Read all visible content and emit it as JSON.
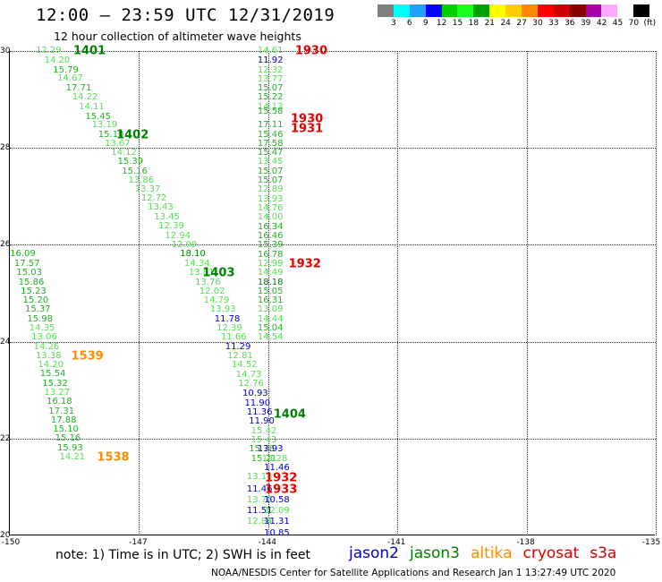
{
  "title": "12:00 — 23:59 UTC 12/31/2019",
  "subtitle": "12 hour collection of altimeter wave heights",
  "colorbar": {
    "colors": [
      "#808080",
      "#00ffff",
      "#1fa0ff",
      "#0000ff",
      "#00d000",
      "#1aff1a",
      "#00a000",
      "#ffff00",
      "#ffcc00",
      "#ff8800",
      "#ff0000",
      "#cc0000",
      "#880000",
      "#aa00aa",
      "#ffaaff",
      "#ffffff",
      "#000000"
    ],
    "labels": [
      "3",
      "6",
      "9",
      "12",
      "15",
      "18",
      "21",
      "24",
      "27",
      "30",
      "33",
      "36",
      "39",
      "42",
      "45",
      "70",
      "(ft)"
    ]
  },
  "map": {
    "x_ticks": [
      "-150",
      "-147",
      "-144",
      "-141",
      "-138",
      "-135"
    ],
    "y_ticks": [
      "30",
      "28",
      "26",
      "24",
      "22",
      "20"
    ]
  },
  "track_colors": {
    "dark_green": "#008000",
    "green": "#22b022",
    "light_green": "#55dd55",
    "blue": "#0000cc",
    "orange": "#ff8c00",
    "red": "#e00000",
    "black": "#000000"
  },
  "values": [
    {
      "t": "12.29",
      "c": "light_green",
      "x": -149.1,
      "y": 30.0
    },
    {
      "t": "14.20",
      "c": "light_green",
      "x": -148.9,
      "y": 29.8
    },
    {
      "t": "15.79",
      "c": "green",
      "x": -148.7,
      "y": 29.6
    },
    {
      "t": "14.67",
      "c": "light_green",
      "x": -148.6,
      "y": 29.42
    },
    {
      "t": "17.71",
      "c": "green",
      "x": -148.4,
      "y": 29.22
    },
    {
      "t": "14.22",
      "c": "light_green",
      "x": -148.25,
      "y": 29.03
    },
    {
      "t": "14.11",
      "c": "light_green",
      "x": -148.1,
      "y": 28.84
    },
    {
      "t": "15.45",
      "c": "green",
      "x": -147.95,
      "y": 28.64
    },
    {
      "t": "13.19",
      "c": "light_green",
      "x": -147.8,
      "y": 28.46
    },
    {
      "t": "15.10",
      "c": "green",
      "x": -147.65,
      "y": 28.27
    },
    {
      "t": "13.67",
      "c": "light_green",
      "x": -147.5,
      "y": 28.08
    },
    {
      "t": "14.12",
      "c": "light_green",
      "x": -147.35,
      "y": 27.89
    },
    {
      "t": "15.39",
      "c": "green",
      "x": -147.2,
      "y": 27.7
    },
    {
      "t": "15.16",
      "c": "green",
      "x": -147.1,
      "y": 27.51
    },
    {
      "t": "13.86",
      "c": "light_green",
      "x": -146.95,
      "y": 27.32
    },
    {
      "t": "13.37",
      "c": "light_green",
      "x": -146.8,
      "y": 27.13
    },
    {
      "t": "12.72",
      "c": "light_green",
      "x": -146.65,
      "y": 26.95
    },
    {
      "t": "13.43",
      "c": "light_green",
      "x": -146.5,
      "y": 26.76
    },
    {
      "t": "13.45",
      "c": "light_green",
      "x": -146.35,
      "y": 26.56
    },
    {
      "t": "12.39",
      "c": "light_green",
      "x": -146.25,
      "y": 26.37
    },
    {
      "t": "12.94",
      "c": "light_green",
      "x": -146.1,
      "y": 26.18
    },
    {
      "t": "12.99",
      "c": "light_green",
      "x": -145.95,
      "y": 25.99
    },
    {
      "t": "18.10",
      "c": "dark_green",
      "x": -145.75,
      "y": 25.8
    },
    {
      "t": "14.34",
      "c": "light_green",
      "x": -145.65,
      "y": 25.6
    },
    {
      "t": "13.81",
      "c": "light_green",
      "x": -145.55,
      "y": 25.41
    },
    {
      "t": "13.76",
      "c": "light_green",
      "x": -145.4,
      "y": 25.22
    },
    {
      "t": "12.02",
      "c": "light_green",
      "x": -145.3,
      "y": 25.03
    },
    {
      "t": "14.79",
      "c": "light_green",
      "x": -145.2,
      "y": 24.84
    },
    {
      "t": "13.93",
      "c": "light_green",
      "x": -145.05,
      "y": 24.65
    },
    {
      "t": "11.78",
      "c": "blue",
      "x": -144.95,
      "y": 24.46
    },
    {
      "t": "12.39",
      "c": "light_green",
      "x": -144.9,
      "y": 24.27
    },
    {
      "t": "11.66",
      "c": "light_green",
      "x": -144.8,
      "y": 24.08
    },
    {
      "t": "11.29",
      "c": "blue",
      "x": -144.7,
      "y": 23.89
    },
    {
      "t": "12.81",
      "c": "light_green",
      "x": -144.65,
      "y": 23.7
    },
    {
      "t": "14.52",
      "c": "light_green",
      "x": -144.55,
      "y": 23.51
    },
    {
      "t": "14.73",
      "c": "light_green",
      "x": -144.45,
      "y": 23.31
    },
    {
      "t": "12.76",
      "c": "light_green",
      "x": -144.4,
      "y": 23.12
    },
    {
      "t": "10.93",
      "c": "blue",
      "x": -144.3,
      "y": 22.92
    },
    {
      "t": "11.90",
      "c": "blue",
      "x": -144.25,
      "y": 22.72
    },
    {
      "t": "11.36",
      "c": "blue",
      "x": -144.2,
      "y": 22.53
    },
    {
      "t": "11.90",
      "c": "blue",
      "x": -144.15,
      "y": 22.34
    },
    {
      "t": "15.42",
      "c": "light_green",
      "x": -144.1,
      "y": 22.15
    },
    {
      "t": "15.43",
      "c": "light_green",
      "x": -144.1,
      "y": 21.96
    },
    {
      "t": "15.78",
      "c": "green",
      "x": -144.15,
      "y": 21.77
    },
    {
      "t": "15.21",
      "c": "green",
      "x": -144.1,
      "y": 21.58
    },
    {
      "t": "13.18",
      "c": "light_green",
      "x": -144.2,
      "y": 21.2
    },
    {
      "t": "11.46",
      "c": "blue",
      "x": -144.2,
      "y": 20.95
    },
    {
      "t": "13.78",
      "c": "light_green",
      "x": -144.2,
      "y": 20.73
    },
    {
      "t": "11.51",
      "c": "blue",
      "x": -144.2,
      "y": 20.5
    },
    {
      "t": "12.84",
      "c": "light_green",
      "x": -144.2,
      "y": 20.27
    },
    {
      "t": "14.61",
      "c": "light_green",
      "x": -143.95,
      "y": 30.0
    },
    {
      "t": "11.92",
      "c": "blue",
      "x": -143.95,
      "y": 29.8
    },
    {
      "t": "12.32",
      "c": "light_green",
      "x": -143.95,
      "y": 29.6
    },
    {
      "t": "13.77",
      "c": "light_green",
      "x": -143.95,
      "y": 29.41
    },
    {
      "t": "15.07",
      "c": "green",
      "x": -143.95,
      "y": 29.22
    },
    {
      "t": "15.22",
      "c": "green",
      "x": -143.95,
      "y": 29.03
    },
    {
      "t": "14.13",
      "c": "light_green",
      "x": -143.95,
      "y": 28.84
    },
    {
      "t": "15.58",
      "c": "green",
      "x": -143.95,
      "y": 28.75
    },
    {
      "t": "17.11",
      "c": "green",
      "x": -143.95,
      "y": 28.46
    },
    {
      "t": "15.46",
      "c": "green",
      "x": -143.95,
      "y": 28.27
    },
    {
      "t": "17.58",
      "c": "green",
      "x": -143.95,
      "y": 28.08
    },
    {
      "t": "15.47",
      "c": "green",
      "x": -143.95,
      "y": 27.89
    },
    {
      "t": "13.45",
      "c": "light_green",
      "x": -143.95,
      "y": 27.7
    },
    {
      "t": "15.07",
      "c": "green",
      "x": -143.95,
      "y": 27.51
    },
    {
      "t": "15.07",
      "c": "green",
      "x": -143.95,
      "y": 27.32
    },
    {
      "t": "12.89",
      "c": "light_green",
      "x": -143.95,
      "y": 27.13
    },
    {
      "t": "13.93",
      "c": "light_green",
      "x": -143.95,
      "y": 26.94
    },
    {
      "t": "14.76",
      "c": "light_green",
      "x": -143.95,
      "y": 26.75
    },
    {
      "t": "14.00",
      "c": "light_green",
      "x": -143.95,
      "y": 26.56
    },
    {
      "t": "16.34",
      "c": "green",
      "x": -143.95,
      "y": 26.36
    },
    {
      "t": "16.46",
      "c": "green",
      "x": -143.95,
      "y": 26.17
    },
    {
      "t": "15.39",
      "c": "green",
      "x": -143.95,
      "y": 25.98
    },
    {
      "t": "16.78",
      "c": "green",
      "x": -143.95,
      "y": 25.79
    },
    {
      "t": "12.99",
      "c": "light_green",
      "x": -143.95,
      "y": 25.6
    },
    {
      "t": "14.49",
      "c": "light_green",
      "x": -143.95,
      "y": 25.41
    },
    {
      "t": "18.18",
      "c": "dark_green",
      "x": -143.95,
      "y": 25.22
    },
    {
      "t": "15.05",
      "c": "green",
      "x": -143.95,
      "y": 25.03
    },
    {
      "t": "16.31",
      "c": "green",
      "x": -143.95,
      "y": 24.84
    },
    {
      "t": "13.09",
      "c": "light_green",
      "x": -143.95,
      "y": 24.65
    },
    {
      "t": "14.44",
      "c": "light_green",
      "x": -143.95,
      "y": 24.46
    },
    {
      "t": "15.04",
      "c": "green",
      "x": -143.95,
      "y": 24.27
    },
    {
      "t": "14.54",
      "c": "light_green",
      "x": -143.95,
      "y": 24.08
    },
    {
      "t": "13.93",
      "c": "blue",
      "x": -143.95,
      "y": 21.77
    },
    {
      "t": "14.28",
      "c": "light_green",
      "x": -143.85,
      "y": 21.58
    },
    {
      "t": "11.46",
      "c": "blue",
      "x": -143.8,
      "y": 21.39
    },
    {
      "t": "10.58",
      "c": "blue",
      "x": -143.8,
      "y": 20.73
    },
    {
      "t": "12.09",
      "c": "light_green",
      "x": -143.8,
      "y": 20.5
    },
    {
      "t": "11.31",
      "c": "blue",
      "x": -143.8,
      "y": 20.27
    },
    {
      "t": "10.85",
      "c": "blue",
      "x": -143.8,
      "y": 20.04
    },
    {
      "t": "16.09",
      "c": "green",
      "x": -149.7,
      "y": 25.8
    },
    {
      "t": "17.57",
      "c": "green",
      "x": -149.6,
      "y": 25.6
    },
    {
      "t": "15.03",
      "c": "green",
      "x": -149.55,
      "y": 25.41
    },
    {
      "t": "15.86",
      "c": "green",
      "x": -149.5,
      "y": 25.22
    },
    {
      "t": "15.23",
      "c": "green",
      "x": -149.45,
      "y": 25.03
    },
    {
      "t": "15.20",
      "c": "green",
      "x": -149.4,
      "y": 24.84
    },
    {
      "t": "15.37",
      "c": "green",
      "x": -149.35,
      "y": 24.65
    },
    {
      "t": "15.98",
      "c": "green",
      "x": -149.3,
      "y": 24.46
    },
    {
      "t": "14.35",
      "c": "light_green",
      "x": -149.25,
      "y": 24.27
    },
    {
      "t": "13.06",
      "c": "light_green",
      "x": -149.2,
      "y": 24.08
    },
    {
      "t": "14.26",
      "c": "light_green",
      "x": -149.15,
      "y": 23.89
    },
    {
      "t": "13.38",
      "c": "light_green",
      "x": -149.1,
      "y": 23.7
    },
    {
      "t": "14.20",
      "c": "light_green",
      "x": -149.05,
      "y": 23.51
    },
    {
      "t": "15.54",
      "c": "green",
      "x": -149.0,
      "y": 23.32
    },
    {
      "t": "15.32",
      "c": "green",
      "x": -148.95,
      "y": 23.13
    },
    {
      "t": "13.27",
      "c": "light_green",
      "x": -148.9,
      "y": 22.94
    },
    {
      "t": "16.18",
      "c": "green",
      "x": -148.85,
      "y": 22.75
    },
    {
      "t": "17.31",
      "c": "green",
      "x": -148.8,
      "y": 22.56
    },
    {
      "t": "17.88",
      "c": "green",
      "x": -148.75,
      "y": 22.37
    },
    {
      "t": "15.10",
      "c": "green",
      "x": -148.7,
      "y": 22.18
    },
    {
      "t": "15.16",
      "c": "green",
      "x": -148.65,
      "y": 21.99
    },
    {
      "t": "15.93",
      "c": "green",
      "x": -148.6,
      "y": 21.8
    },
    {
      "t": "14.21",
      "c": "light_green",
      "x": -148.55,
      "y": 21.61
    }
  ],
  "hour_labels": [
    {
      "t": "1401",
      "c": "dark_green",
      "x": -148.15,
      "y": 30.0
    },
    {
      "t": "1402",
      "c": "dark_green",
      "x": -147.15,
      "y": 28.27
    },
    {
      "t": "1403",
      "c": "dark_green",
      "x": -145.15,
      "y": 25.41
    },
    {
      "t": "1404",
      "c": "dark_green",
      "x": -143.5,
      "y": 22.5
    },
    {
      "t": "1539",
      "c": "orange",
      "x": -148.2,
      "y": 23.7
    },
    {
      "t": "1538",
      "c": "orange",
      "x": -147.6,
      "y": 21.61
    },
    {
      "t": "1930",
      "c": "red",
      "x": -143.0,
      "y": 30.0
    },
    {
      "t": "1930",
      "c": "red",
      "x": -143.1,
      "y": 28.6
    },
    {
      "t": "1931",
      "c": "red",
      "x": -143.1,
      "y": 28.4
    },
    {
      "t": "1932",
      "c": "red",
      "x": -143.15,
      "y": 25.6
    },
    {
      "t": "1932",
      "c": "red",
      "x": -143.7,
      "y": 21.18
    },
    {
      "t": "1933",
      "c": "red",
      "x": -143.7,
      "y": 20.95
    }
  ],
  "footer_note": "note:  1) Time is in UTC;  2) SWH is in feet",
  "satellites": [
    {
      "name": "jason2",
      "color": "#0000cc"
    },
    {
      "name": "jason3",
      "color": "#008000"
    },
    {
      "name": "altika",
      "color": "#ff8c00"
    },
    {
      "name": "cryosat",
      "color": "#e00000"
    },
    {
      "name": "s3a",
      "color": "#cc0000"
    }
  ],
  "credit": "NOAA/NESDIS Center for Satellite Applications and Research    Jan  1 13:27:49 UTC 2020"
}
